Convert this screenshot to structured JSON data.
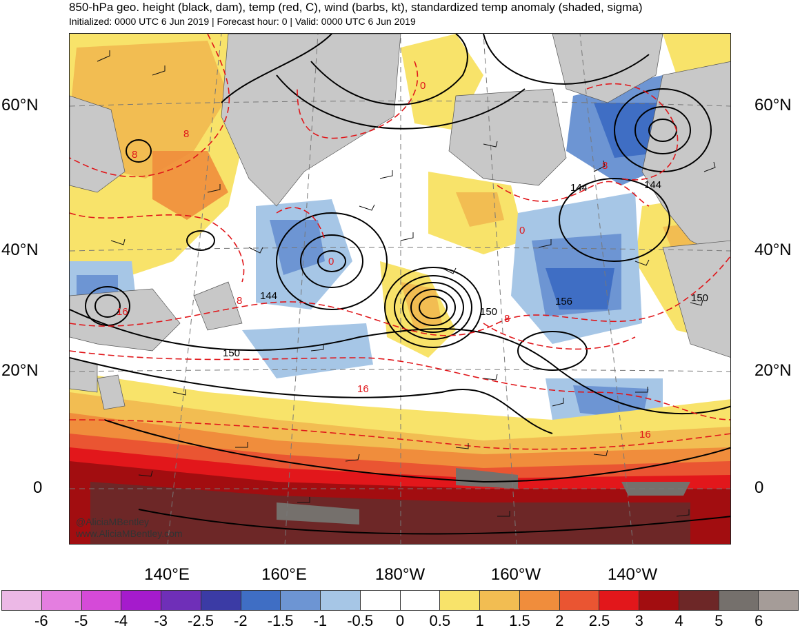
{
  "header": {
    "title": "850-hPa geo. height (black, dam), temp (red, C), wind (barbs, kt), standardized temp anomaly (shaded, sigma)",
    "subtitle": "Initialized: 0000 UTC 6 Jun 2019 | Forecast hour: 0 | Valid: 0000 UTC 6 Jun 2019"
  },
  "map": {
    "lat_labels": [
      "60°N",
      "40°N",
      "20°N",
      "0"
    ],
    "lon_labels": [
      "140°E",
      "160°E",
      "180°W",
      "160°W",
      "140°W"
    ],
    "height_contour_labels": [
      "144",
      "150",
      "156",
      "144",
      "144",
      "150",
      "150"
    ],
    "temp_contour_labels": [
      "8",
      "8",
      "16",
      "8",
      "0",
      "0",
      "8",
      "0",
      "16",
      "16",
      "8"
    ],
    "credits": [
      "@AliciaMBentley",
      "www.AliciaMBentley.com"
    ]
  },
  "colorbar": {
    "labels": [
      "-6",
      "-5",
      "-4",
      "-3",
      "-2.5",
      "-2",
      "-1.5",
      "-1",
      "-0.5",
      "0",
      "0.5",
      "1",
      "1.5",
      "2",
      "2.5",
      "3",
      "4",
      "5",
      "6"
    ],
    "colors": [
      "#ecb8e6",
      "#e47ee0",
      "#d54ad8",
      "#a51bcc",
      "#6f2fb8",
      "#3b3ba5",
      "#3f6ec4",
      "#6d95d3",
      "#a6c6e6",
      "#ffffff",
      "#ffffff",
      "#f8e36a",
      "#f2bd52",
      "#f08d3c",
      "#ea5532",
      "#e2171b",
      "#a20d10",
      "#6d2727",
      "#75706c",
      "#a59c98"
    ]
  },
  "colors": {
    "land": "#c8c8c8",
    "height_contour": "#000000",
    "temp_contour": "#e0161a"
  }
}
